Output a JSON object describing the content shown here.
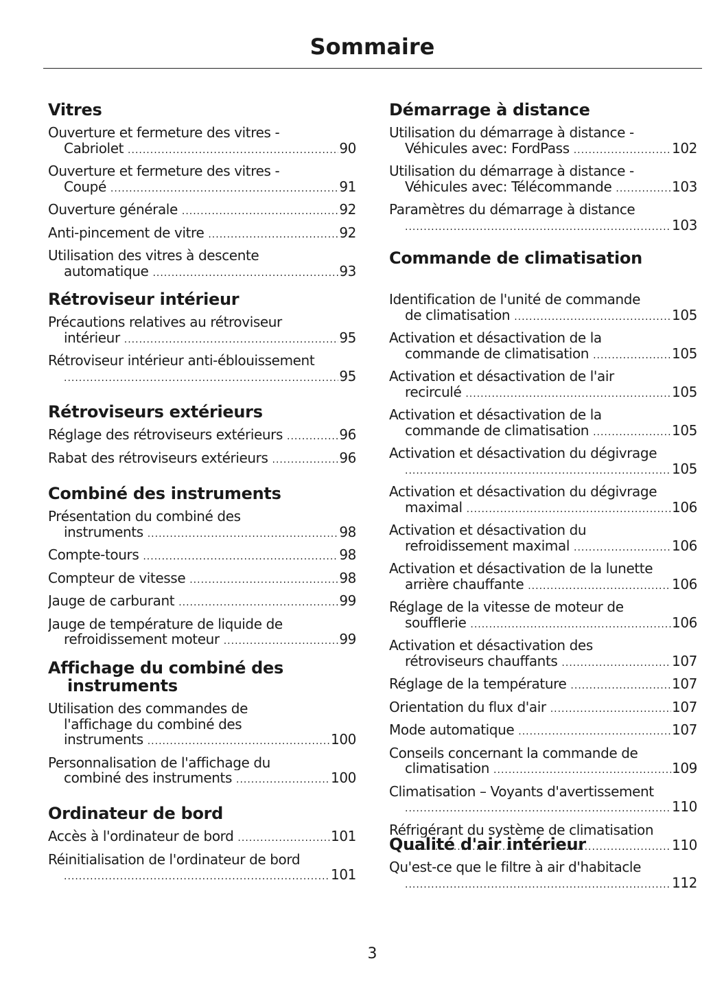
{
  "title": "Sommaire",
  "page_number": "3",
  "left": [
    {
      "heading": [
        "Vitres"
      ],
      "entries": [
        {
          "lines": [
            "Ouverture et fermeture des vitres -",
            "Cabriolet"
          ],
          "page": "90"
        },
        {
          "lines": [
            "Ouverture et fermeture des vitres -",
            "Coupé"
          ],
          "page": "91"
        },
        {
          "lines": [
            "Ouverture générale"
          ],
          "page": "92"
        },
        {
          "lines": [
            "Anti-pincement de vitre"
          ],
          "page": "92"
        },
        {
          "lines": [
            "Utilisation des vitres à descente",
            "automatique"
          ],
          "page": "93"
        }
      ]
    },
    {
      "heading": [
        "Rétroviseur intérieur"
      ],
      "entries": [
        {
          "lines": [
            "Précautions relatives au rétroviseur",
            "intérieur"
          ],
          "page": "95"
        },
        {
          "lines": [
            "Rétroviseur intérieur anti-éblouissement",
            ""
          ],
          "page": "95"
        }
      ]
    },
    {
      "heading": [
        "Rétroviseurs extérieurs"
      ],
      "entries": [
        {
          "lines": [
            "Réglage des rétroviseurs extérieurs"
          ],
          "page": "96"
        },
        {
          "lines": [
            "Rabat des rétroviseurs extérieurs"
          ],
          "page": "96"
        }
      ]
    },
    {
      "heading": [
        "Combiné des instruments"
      ],
      "entries": [
        {
          "lines": [
            "Présentation du combiné des",
            "instruments"
          ],
          "page": "98"
        },
        {
          "lines": [
            "Compte-tours"
          ],
          "page": "98"
        },
        {
          "lines": [
            "Compteur de vitesse"
          ],
          "page": "98"
        },
        {
          "lines": [
            "Jauge de carburant"
          ],
          "page": "99"
        },
        {
          "lines": [
            "Jauge de température de liquide de",
            "refroidissement moteur"
          ],
          "page": "99"
        }
      ]
    },
    {
      "heading": [
        "Affichage du combiné des",
        "instruments"
      ],
      "entries": [
        {
          "lines": [
            "Utilisation des commandes de",
            "l'affichage du combiné des",
            "instruments"
          ],
          "page": "100"
        },
        {
          "lines": [
            "Personnalisation de l'affichage du",
            "combiné des instruments"
          ],
          "page": "100"
        }
      ]
    },
    {
      "heading": [
        "Ordinateur de bord"
      ],
      "entries": [
        {
          "lines": [
            "Accès à l'ordinateur de bord"
          ],
          "page": "101"
        },
        {
          "lines": [
            "Réinitialisation de l'ordinateur de bord",
            ""
          ],
          "page": "101"
        }
      ]
    }
  ],
  "right": [
    {
      "heading": [
        "Démarrage à distance"
      ],
      "entries": [
        {
          "lines": [
            "Utilisation du démarrage à distance -",
            "Véhicules avec: FordPass"
          ],
          "page": "102"
        },
        {
          "lines": [
            "Utilisation du démarrage à distance -",
            "Véhicules avec: Télécommande"
          ],
          "page": "103"
        },
        {
          "lines": [
            "Paramètres du démarrage à distance",
            ""
          ],
          "page": "103"
        }
      ]
    },
    {
      "heading": [
        "Commande de climatisation"
      ],
      "entries": [
        {
          "lines": [
            "Identification de l'unité de commande",
            "de climatisation"
          ],
          "page": "105"
        },
        {
          "lines": [
            "Activation et désactivation de la",
            "commande de climatisation"
          ],
          "page": "105"
        },
        {
          "lines": [
            "Activation et désactivation de l'air",
            "recirculé"
          ],
          "page": "105"
        },
        {
          "lines": [
            "Activation et désactivation de la",
            "commande de climatisation"
          ],
          "page": "105"
        },
        {
          "lines": [
            "Activation et désactivation du dégivrage",
            ""
          ],
          "page": "105"
        },
        {
          "lines": [
            "Activation et désactivation du dégivrage",
            "maximal"
          ],
          "page": "106"
        },
        {
          "lines": [
            "Activation et désactivation du",
            "refroidissement maximal"
          ],
          "page": "106"
        },
        {
          "lines": [
            "Activation et désactivation de la lunette",
            "arrière chauffante"
          ],
          "page": "106"
        },
        {
          "lines": [
            "Réglage de la vitesse de moteur de",
            "soufflerie"
          ],
          "page": "106"
        },
        {
          "lines": [
            "Activation et désactivation des",
            "rétroviseurs chauffants"
          ],
          "page": "107"
        },
        {
          "lines": [
            "Réglage de la température"
          ],
          "page": "107"
        },
        {
          "lines": [
            "Orientation du flux d'air"
          ],
          "page": "107"
        },
        {
          "lines": [
            "Mode automatique"
          ],
          "page": "107"
        },
        {
          "lines": [
            "Conseils concernant la commande de",
            "climatisation"
          ],
          "page": "109"
        },
        {
          "lines": [
            "Climatisation – Voyants d'avertissement",
            ""
          ],
          "page": "110"
        },
        {
          "lines": [
            "Réfrigérant du système de climatisation",
            ""
          ],
          "page": "110"
        }
      ]
    },
    {
      "heading": [
        "Qualité d'air intérieur"
      ],
      "entries": [
        {
          "lines": [
            "Qu'est-ce que le filtre à air d'habitacle",
            ""
          ],
          "page": "112"
        }
      ]
    }
  ]
}
